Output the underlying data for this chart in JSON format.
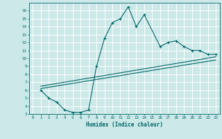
{
  "xlabel": "Humidex (Indice chaleur)",
  "bg_color": "#cce8e8",
  "grid_color": "#ffffff",
  "line_color": "#006666",
  "xlim": [
    -0.5,
    23.5
  ],
  "ylim": [
    3,
    17
  ],
  "xticks": [
    0,
    1,
    2,
    3,
    4,
    5,
    6,
    7,
    8,
    9,
    10,
    11,
    12,
    13,
    14,
    15,
    16,
    17,
    18,
    19,
    20,
    21,
    22,
    23
  ],
  "yticks": [
    3,
    4,
    5,
    6,
    7,
    8,
    9,
    10,
    11,
    12,
    13,
    14,
    15,
    16
  ],
  "line1_x": [
    1,
    2,
    3,
    4,
    5,
    6,
    7,
    8,
    9,
    10,
    11,
    12,
    13,
    14,
    16,
    17,
    18,
    19,
    20,
    21,
    22,
    23
  ],
  "line1_y": [
    6.0,
    5.0,
    4.5,
    3.5,
    3.2,
    3.2,
    3.5,
    9.0,
    12.5,
    14.5,
    15.0,
    16.5,
    14.0,
    15.5,
    11.5,
    12.0,
    12.2,
    11.5,
    11.0,
    11.0,
    10.5,
    10.5
  ],
  "line2_x": [
    1,
    23
  ],
  "line2_y": [
    6.5,
    10.2
  ],
  "line3_x": [
    1,
    23
  ],
  "line3_y": [
    6.2,
    9.8
  ]
}
